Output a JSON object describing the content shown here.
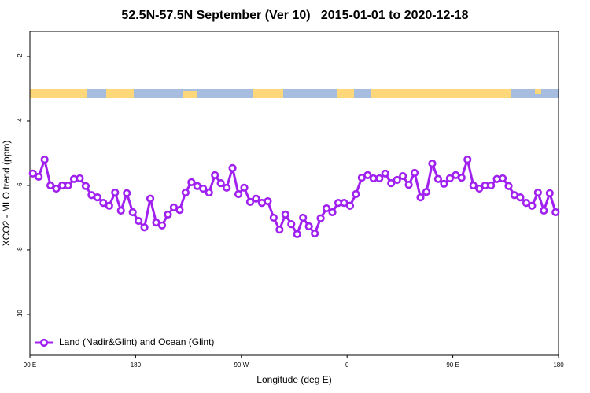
{
  "chart_data": {
    "type": "line",
    "title": "52.5N-57.5N September (Ver 10)   2015-01-01 to 2020-12-18",
    "xlabel": "Longitude (deg E)",
    "ylabel": "XCO2 - MLO trend (ppm)",
    "x": [
      92.5,
      97.5,
      102.5,
      107.5,
      112.5,
      117.5,
      122.5,
      127.5,
      132.5,
      137.5,
      142.5,
      147.5,
      152.5,
      157.5,
      162.5,
      167.5,
      172.5,
      177.5,
      182.5,
      187.5,
      192.5,
      197.5,
      202.5,
      207.5,
      212.5,
      217.5,
      222.5,
      227.5,
      232.5,
      237.5,
      242.5,
      247.5,
      252.5,
      257.5,
      262.5,
      267.5,
      272.5,
      277.5,
      282.5,
      287.5,
      292.5,
      297.5,
      302.5,
      307.5,
      312.5,
      317.5,
      322.5,
      327.5,
      332.5,
      337.5,
      342.5,
      347.5,
      352.5,
      357.5,
      362.5,
      367.5,
      372.5,
      377.5,
      382.5,
      387.5,
      392.5,
      397.5,
      402.5,
      407.5,
      412.5,
      417.5,
      422.5,
      427.5,
      432.5,
      437.5,
      442.5,
      447.5,
      452.5,
      457.5,
      462.5,
      467.5,
      472.5,
      477.5,
      482.5,
      487.5,
      492.5,
      497.5,
      502.5,
      507.5,
      512.5,
      517.5,
      522.5,
      527.5,
      532.5,
      537.5
    ],
    "series": [
      {
        "name": "Land (Nadir&Glint) and Ocean (Glint)",
        "color": "#a020f0",
        "values": [
          -5.63,
          -5.73,
          -5.2,
          -6.0,
          -6.1,
          -6.0,
          -6.0,
          -5.8,
          -5.78,
          -6.02,
          -6.3,
          -6.37,
          -6.54,
          -6.63,
          -6.22,
          -6.78,
          -6.24,
          -6.83,
          -7.1,
          -7.3,
          -6.41,
          -7.15,
          -7.24,
          -6.9,
          -6.68,
          -6.76,
          -6.22,
          -5.9,
          -6.02,
          -6.1,
          -6.22,
          -5.68,
          -5.93,
          -6.07,
          -5.46,
          -6.27,
          -6.07,
          -6.51,
          -6.41,
          -6.54,
          -6.49,
          -7.0,
          -7.37,
          -6.9,
          -7.2,
          -7.51,
          -7.0,
          -7.27,
          -7.49,
          -7.02,
          -6.71,
          -6.83,
          -6.54,
          -6.54,
          -6.63,
          -6.27,
          -5.76,
          -5.68,
          -5.78,
          -5.78,
          -5.63,
          -5.93,
          -5.83,
          -5.71,
          -5.98,
          -5.61,
          -6.37,
          -6.2,
          -5.32,
          -5.8,
          -5.95,
          -5.78,
          -5.68,
          -5.76,
          -5.2,
          -6.0,
          -6.1,
          -6.0,
          -6.0,
          -5.8,
          -5.78,
          -6.02,
          -6.3,
          -6.37,
          -6.54,
          -6.63,
          -6.22,
          -6.78,
          -6.24,
          -6.83
        ]
      }
    ],
    "xlim": [
      90,
      540
    ],
    "xticks": [
      {
        "value": 90,
        "label": "90 E"
      },
      {
        "value": 180,
        "label": "180"
      },
      {
        "value": 270,
        "label": "90 W"
      },
      {
        "value": 360,
        "label": "0"
      },
      {
        "value": 450,
        "label": "90 E"
      },
      {
        "value": 540,
        "label": "180"
      }
    ],
    "ylim": [
      -11.27,
      -1.22
    ],
    "yticks": [
      -10,
      -8,
      -6,
      -4,
      -2
    ],
    "legend": "lower left"
  }
}
